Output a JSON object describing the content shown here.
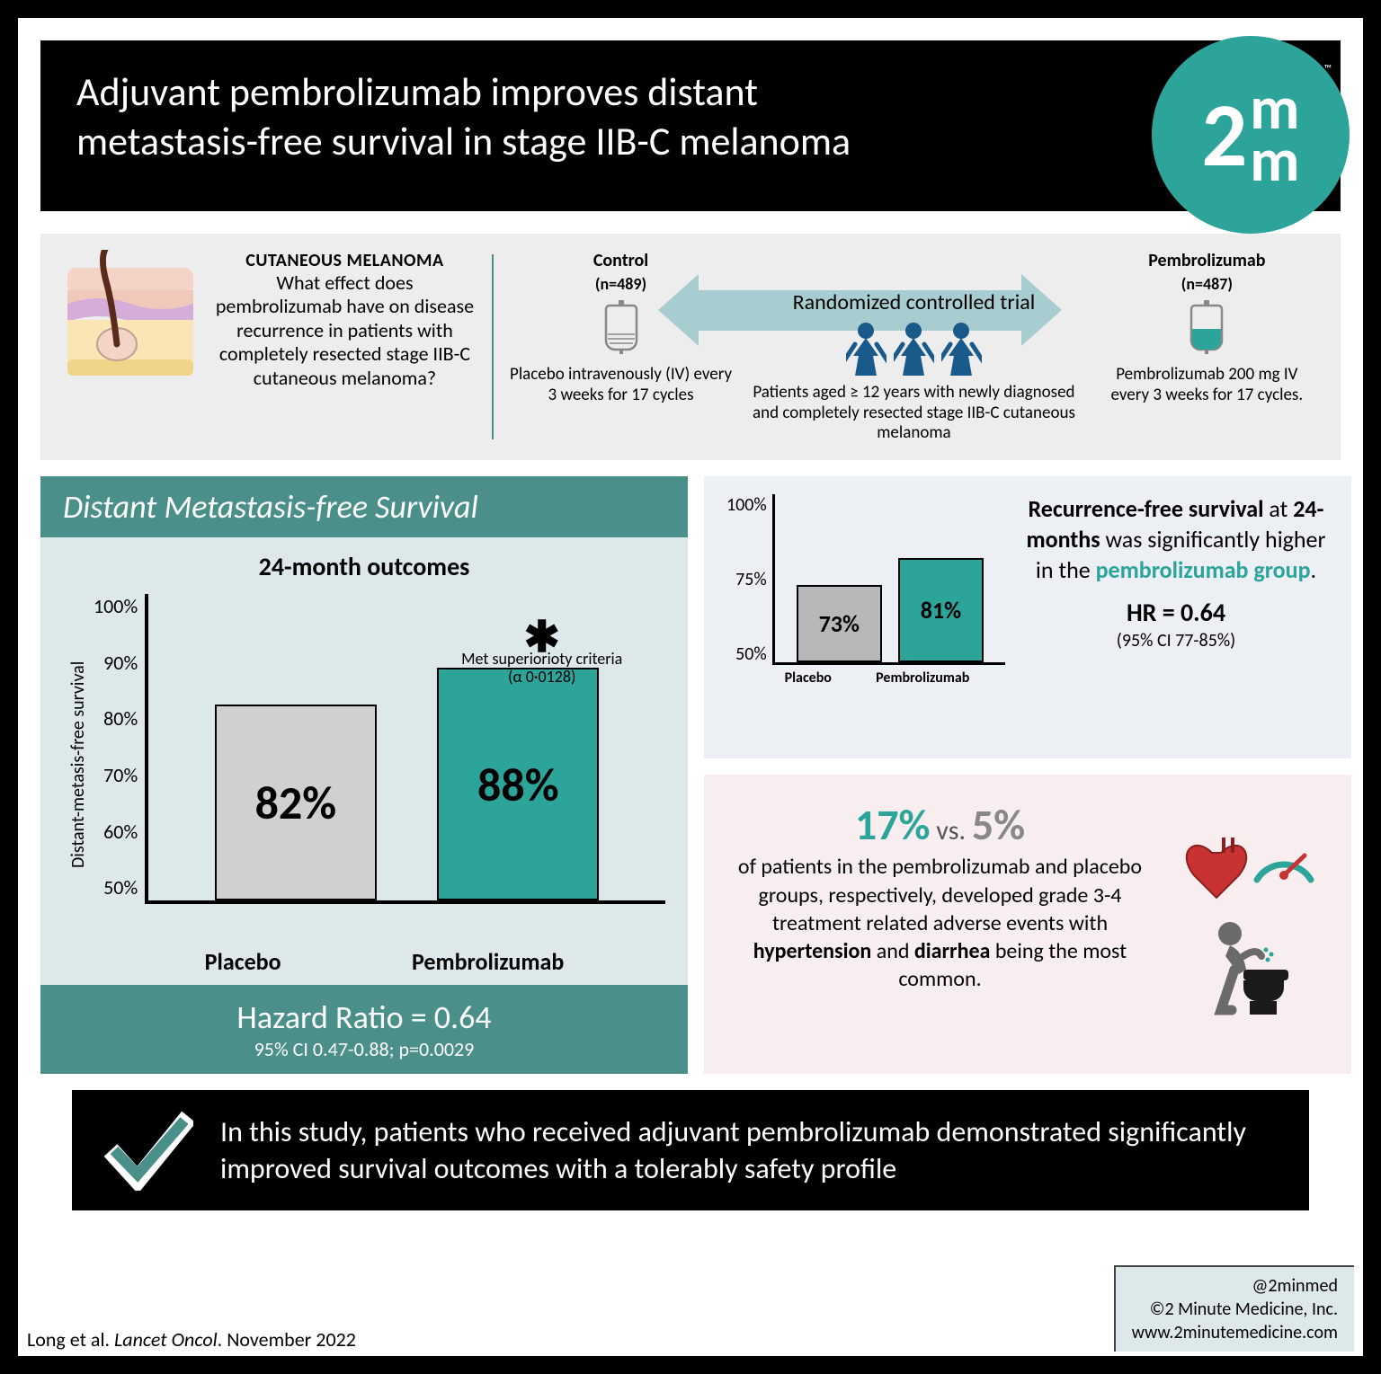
{
  "header": {
    "title": "Adjuvant pembrolizumab improves distant metastasis-free survival in stage IIB-C melanoma",
    "logo_num": "2",
    "logo_m": "m",
    "logo_tm": "™"
  },
  "study": {
    "disease_label": "CUTANEOUS MELANOMA",
    "question": "What effect does pembrolizumab have on disease recurrence in patients with completely resected stage IIB-C cutaneous melanoma?",
    "control_label": "Control",
    "control_n": "(n=489)",
    "control_desc": "Placebo intravenously (IV) every 3 weeks for 17 cycles",
    "rct_label": "Randomized controlled trial",
    "population": "Patients aged ≥ 12 years with newly diagnosed and completely resected stage IIB-C cutaneous melanoma",
    "treatment_label": "Pembrolizumab",
    "treatment_n": "(n=487)",
    "treatment_desc": "Pembrolizumab 200 mg IV every 3 weeks for 17 cycles."
  },
  "dmfs": {
    "panel_title": "Distant Metastasis-free Survival",
    "chart_title": "24-month outcomes",
    "y_axis_label": "Distant-metasis-free survival",
    "y_ticks": [
      "100%",
      "90%",
      "80%",
      "70%",
      "60%",
      "50%"
    ],
    "ylim": [
      50,
      100
    ],
    "bars": [
      {
        "label": "Placebo",
        "value": 82,
        "display": "82%",
        "color": "#d0d0d0"
      },
      {
        "label": "Pembrolizumab",
        "value": 88,
        "display": "88%",
        "color": "#2da49a"
      }
    ],
    "superiority_note": "Met superiorioty criteria",
    "superiority_alpha": "(α 0·0128)",
    "hr_text": "Hazard Ratio = 0.64",
    "ci_text": "95% CI 0.47-0.88; p=0.0029"
  },
  "rfs": {
    "y_ticks": [
      "100%",
      "75%",
      "50%"
    ],
    "ylim": [
      50,
      100
    ],
    "bars": [
      {
        "label": "Placebo",
        "value": 73,
        "display": "73%",
        "color": "#b8b8b8"
      },
      {
        "label": "Pembrolizumab",
        "value": 81,
        "display": "81%",
        "color": "#2da49a"
      }
    ],
    "text_line1": "Recurrence-free survival",
    "text_line2": " at ",
    "text_bold2": "24-months",
    "text_line3": " was significantly higher in the ",
    "text_teal": "pembrolizumab group",
    "text_period": ".",
    "hr_text": "HR = 0.64",
    "ci_text": "(95% CI 77-85%)"
  },
  "ae": {
    "pct1": "17%",
    "vs": " vs. ",
    "pct2": "5%",
    "body1": "of patients in the pembrolizumab and placebo groups, respectively, developed grade 3-4 treatment related adverse events with ",
    "bold1": "hypertension",
    "mid": " and ",
    "bold2": "diarrhea",
    "body2": " being the most common."
  },
  "conclusion": {
    "text": "In this study, patients who received adjuvant pembrolizumab demonstrated significantly improved survival outcomes with a tolerably safety profile"
  },
  "footer": {
    "citation_author": "Long et al. ",
    "citation_journal": "Lancet Oncol",
    "citation_date": ". November 2022",
    "handle": "@2minmed",
    "copyright": "©2 Minute Medicine, Inc.",
    "website": "www.2minutemedicine.com"
  },
  "colors": {
    "teal": "#2da49a",
    "teal_dark": "#4a8f8a",
    "gray_bar": "#d0d0d0",
    "panel_bg": "#dce8ea",
    "pink_bg": "#f9eeef"
  }
}
